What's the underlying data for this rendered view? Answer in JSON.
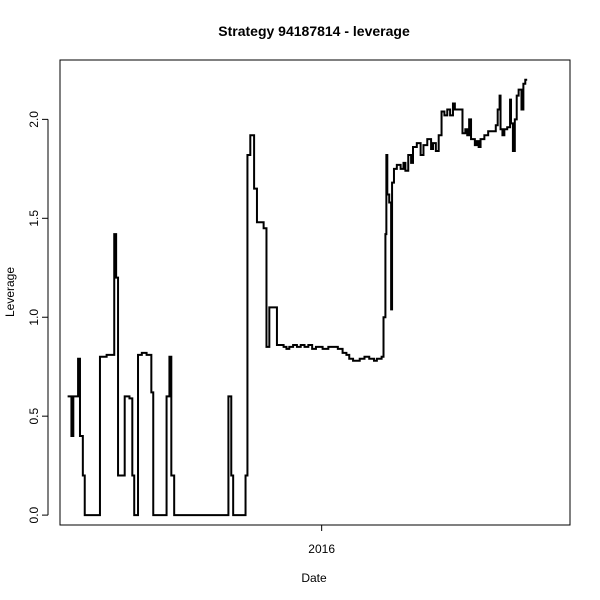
{
  "chart_data": {
    "type": "line",
    "title": "Strategy 94187814 - leverage",
    "xlabel": "Date",
    "ylabel": "Leverage",
    "x_ticks": [
      {
        "label": "2016",
        "value": "2016-01-01"
      }
    ],
    "y_ticks": [
      "0.0",
      "0.5",
      "1.0",
      "1.5",
      "2.0"
    ],
    "xlim": [
      "2015-04-01",
      "2016-09-18"
    ],
    "ylim": [
      -0.05,
      2.3
    ],
    "grid": false,
    "series": [
      {
        "color": "#000000",
        "points": [
          [
            "2015-04-09",
            0.6
          ],
          [
            "2015-04-13",
            0.6
          ],
          [
            "2015-04-13",
            0.4
          ],
          [
            "2015-04-15",
            0.4
          ],
          [
            "2015-04-15",
            0.6
          ],
          [
            "2015-04-20",
            0.6
          ],
          [
            "2015-04-20",
            0.79
          ],
          [
            "2015-04-22",
            0.79
          ],
          [
            "2015-04-22",
            0.4
          ],
          [
            "2015-04-25",
            0.4
          ],
          [
            "2015-04-25",
            0.2
          ],
          [
            "2015-04-27",
            0.2
          ],
          [
            "2015-04-27",
            0.0
          ],
          [
            "2015-05-13",
            0.0
          ],
          [
            "2015-05-13",
            0.8
          ],
          [
            "2015-05-20",
            0.8
          ],
          [
            "2015-05-20",
            0.81
          ],
          [
            "2015-05-28",
            0.81
          ],
          [
            "2015-05-28",
            1.42
          ],
          [
            "2015-05-30",
            1.42
          ],
          [
            "2015-05-30",
            1.2
          ],
          [
            "2015-06-01",
            1.2
          ],
          [
            "2015-06-01",
            0.2
          ],
          [
            "2015-06-08",
            0.2
          ],
          [
            "2015-06-08",
            0.6
          ],
          [
            "2015-06-13",
            0.6
          ],
          [
            "2015-06-13",
            0.59
          ],
          [
            "2015-06-16",
            0.59
          ],
          [
            "2015-06-16",
            0.2
          ],
          [
            "2015-06-18",
            0.2
          ],
          [
            "2015-06-18",
            0.0
          ],
          [
            "2015-06-22",
            0.0
          ],
          [
            "2015-06-22",
            0.81
          ],
          [
            "2015-06-26",
            0.81
          ],
          [
            "2015-06-26",
            0.82
          ],
          [
            "2015-07-01",
            0.82
          ],
          [
            "2015-07-01",
            0.81
          ],
          [
            "2015-07-06",
            0.81
          ],
          [
            "2015-07-06",
            0.62
          ],
          [
            "2015-07-08",
            0.62
          ],
          [
            "2015-07-08",
            0.0
          ],
          [
            "2015-07-22",
            0.0
          ],
          [
            "2015-07-22",
            0.6
          ],
          [
            "2015-07-25",
            0.6
          ],
          [
            "2015-07-25",
            0.8
          ],
          [
            "2015-07-27",
            0.8
          ],
          [
            "2015-07-27",
            0.2
          ],
          [
            "2015-07-30",
            0.2
          ],
          [
            "2015-07-30",
            0.0
          ],
          [
            "2015-09-25",
            0.0
          ],
          [
            "2015-09-25",
            0.6
          ],
          [
            "2015-09-28",
            0.6
          ],
          [
            "2015-09-28",
            0.2
          ],
          [
            "2015-09-30",
            0.2
          ],
          [
            "2015-09-30",
            0.0
          ],
          [
            "2015-10-13",
            0.0
          ],
          [
            "2015-10-13",
            0.2
          ],
          [
            "2015-10-15",
            0.2
          ],
          [
            "2015-10-15",
            1.82
          ],
          [
            "2015-10-18",
            1.82
          ],
          [
            "2015-10-18",
            1.92
          ],
          [
            "2015-10-22",
            1.92
          ],
          [
            "2015-10-22",
            1.65
          ],
          [
            "2015-10-25",
            1.65
          ],
          [
            "2015-10-25",
            1.48
          ],
          [
            "2015-11-01",
            1.48
          ],
          [
            "2015-11-01",
            1.45
          ],
          [
            "2015-11-04",
            1.45
          ],
          [
            "2015-11-04",
            0.85
          ],
          [
            "2015-11-07",
            0.85
          ],
          [
            "2015-11-07",
            1.05
          ],
          [
            "2015-11-15",
            1.05
          ],
          [
            "2015-11-15",
            0.86
          ],
          [
            "2015-11-22",
            0.86
          ],
          [
            "2015-11-22",
            0.85
          ],
          [
            "2015-11-25",
            0.85
          ],
          [
            "2015-11-25",
            0.84
          ],
          [
            "2015-11-28",
            0.84
          ],
          [
            "2015-11-28",
            0.85
          ],
          [
            "2015-12-02",
            0.85
          ],
          [
            "2015-12-02",
            0.86
          ],
          [
            "2015-12-06",
            0.86
          ],
          [
            "2015-12-06",
            0.85
          ],
          [
            "2015-12-10",
            0.85
          ],
          [
            "2015-12-10",
            0.86
          ],
          [
            "2015-12-14",
            0.86
          ],
          [
            "2015-12-14",
            0.85
          ],
          [
            "2015-12-18",
            0.85
          ],
          [
            "2015-12-18",
            0.86
          ],
          [
            "2015-12-22",
            0.86
          ],
          [
            "2015-12-22",
            0.84
          ],
          [
            "2015-12-26",
            0.84
          ],
          [
            "2015-12-26",
            0.85
          ],
          [
            "2016-01-02",
            0.85
          ],
          [
            "2016-01-02",
            0.84
          ],
          [
            "2016-01-08",
            0.84
          ],
          [
            "2016-01-08",
            0.85
          ],
          [
            "2016-01-18",
            0.85
          ],
          [
            "2016-01-18",
            0.84
          ],
          [
            "2016-01-23",
            0.84
          ],
          [
            "2016-01-23",
            0.82
          ],
          [
            "2016-01-27",
            0.82
          ],
          [
            "2016-01-27",
            0.81
          ],
          [
            "2016-01-30",
            0.81
          ],
          [
            "2016-01-30",
            0.79
          ],
          [
            "2016-02-03",
            0.79
          ],
          [
            "2016-02-03",
            0.78
          ],
          [
            "2016-02-10",
            0.78
          ],
          [
            "2016-02-10",
            0.79
          ],
          [
            "2016-02-15",
            0.79
          ],
          [
            "2016-02-15",
            0.8
          ],
          [
            "2016-02-20",
            0.8
          ],
          [
            "2016-02-20",
            0.79
          ],
          [
            "2016-02-25",
            0.79
          ],
          [
            "2016-02-25",
            0.78
          ],
          [
            "2016-02-28",
            0.78
          ],
          [
            "2016-02-28",
            0.79
          ],
          [
            "2016-03-04",
            0.79
          ],
          [
            "2016-03-04",
            0.8
          ],
          [
            "2016-03-06",
            0.8
          ],
          [
            "2016-03-06",
            1.0
          ],
          [
            "2016-03-08",
            1.0
          ],
          [
            "2016-03-08",
            1.42
          ],
          [
            "2016-03-09",
            1.42
          ],
          [
            "2016-03-09",
            1.82
          ],
          [
            "2016-03-10",
            1.82
          ],
          [
            "2016-03-10",
            1.62
          ],
          [
            "2016-03-12",
            1.62
          ],
          [
            "2016-03-12",
            1.58
          ],
          [
            "2016-03-14",
            1.58
          ],
          [
            "2016-03-14",
            1.04
          ],
          [
            "2016-03-15",
            1.04
          ],
          [
            "2016-03-15",
            1.68
          ],
          [
            "2016-03-17",
            1.68
          ],
          [
            "2016-03-17",
            1.75
          ],
          [
            "2016-03-20",
            1.75
          ],
          [
            "2016-03-20",
            1.77
          ],
          [
            "2016-03-24",
            1.77
          ],
          [
            "2016-03-24",
            1.75
          ],
          [
            "2016-03-27",
            1.75
          ],
          [
            "2016-03-27",
            1.78
          ],
          [
            "2016-03-29",
            1.78
          ],
          [
            "2016-03-29",
            1.74
          ],
          [
            "2016-04-01",
            1.74
          ],
          [
            "2016-04-01",
            1.82
          ],
          [
            "2016-04-04",
            1.82
          ],
          [
            "2016-04-04",
            1.78
          ],
          [
            "2016-04-06",
            1.78
          ],
          [
            "2016-04-06",
            1.86
          ],
          [
            "2016-04-10",
            1.86
          ],
          [
            "2016-04-10",
            1.88
          ],
          [
            "2016-04-14",
            1.88
          ],
          [
            "2016-04-14",
            1.82
          ],
          [
            "2016-04-17",
            1.82
          ],
          [
            "2016-04-17",
            1.87
          ],
          [
            "2016-04-21",
            1.87
          ],
          [
            "2016-04-21",
            1.9
          ],
          [
            "2016-04-25",
            1.9
          ],
          [
            "2016-04-25",
            1.85
          ],
          [
            "2016-04-27",
            1.85
          ],
          [
            "2016-04-27",
            1.88
          ],
          [
            "2016-04-30",
            1.88
          ],
          [
            "2016-04-30",
            1.84
          ],
          [
            "2016-05-03",
            1.84
          ],
          [
            "2016-05-03",
            1.92
          ],
          [
            "2016-05-06",
            1.92
          ],
          [
            "2016-05-06",
            2.04
          ],
          [
            "2016-05-09",
            2.04
          ],
          [
            "2016-05-09",
            2.02
          ],
          [
            "2016-05-12",
            2.02
          ],
          [
            "2016-05-12",
            2.05
          ],
          [
            "2016-05-15",
            2.05
          ],
          [
            "2016-05-15",
            2.02
          ],
          [
            "2016-05-18",
            2.02
          ],
          [
            "2016-05-18",
            2.08
          ],
          [
            "2016-05-20",
            2.08
          ],
          [
            "2016-05-20",
            2.05
          ],
          [
            "2016-05-28",
            2.05
          ],
          [
            "2016-05-28",
            1.93
          ],
          [
            "2016-05-31",
            1.93
          ],
          [
            "2016-05-31",
            1.95
          ],
          [
            "2016-06-02",
            1.95
          ],
          [
            "2016-06-02",
            1.92
          ],
          [
            "2016-06-04",
            1.92
          ],
          [
            "2016-06-04",
            2.0
          ],
          [
            "2016-06-06",
            2.0
          ],
          [
            "2016-06-06",
            1.9
          ],
          [
            "2016-06-10",
            1.9
          ],
          [
            "2016-06-10",
            1.87
          ],
          [
            "2016-06-12",
            1.87
          ],
          [
            "2016-06-12",
            1.89
          ],
          [
            "2016-06-14",
            1.89
          ],
          [
            "2016-06-14",
            1.86
          ],
          [
            "2016-06-16",
            1.86
          ],
          [
            "2016-06-16",
            1.9
          ],
          [
            "2016-06-20",
            1.9
          ],
          [
            "2016-06-20",
            1.92
          ],
          [
            "2016-06-24",
            1.92
          ],
          [
            "2016-06-24",
            1.94
          ],
          [
            "2016-07-02",
            1.94
          ],
          [
            "2016-07-02",
            1.97
          ],
          [
            "2016-07-04",
            1.97
          ],
          [
            "2016-07-04",
            2.05
          ],
          [
            "2016-07-06",
            2.05
          ],
          [
            "2016-07-06",
            2.12
          ],
          [
            "2016-07-07",
            2.12
          ],
          [
            "2016-07-07",
            1.95
          ],
          [
            "2016-07-09",
            1.95
          ],
          [
            "2016-07-09",
            1.92
          ],
          [
            "2016-07-11",
            1.92
          ],
          [
            "2016-07-11",
            1.95
          ],
          [
            "2016-07-14",
            1.95
          ],
          [
            "2016-07-14",
            1.96
          ],
          [
            "2016-07-17",
            1.96
          ],
          [
            "2016-07-17",
            2.1
          ],
          [
            "2016-07-18",
            2.1
          ],
          [
            "2016-07-18",
            1.98
          ],
          [
            "2016-07-20",
            1.98
          ],
          [
            "2016-07-20",
            1.84
          ],
          [
            "2016-07-22",
            1.84
          ],
          [
            "2016-07-22",
            2.0
          ],
          [
            "2016-07-24",
            2.0
          ],
          [
            "2016-07-24",
            2.12
          ],
          [
            "2016-07-26",
            2.12
          ],
          [
            "2016-07-26",
            2.15
          ],
          [
            "2016-07-29",
            2.15
          ],
          [
            "2016-07-29",
            2.05
          ],
          [
            "2016-07-31",
            2.05
          ],
          [
            "2016-07-31",
            2.18
          ],
          [
            "2016-08-02",
            2.18
          ],
          [
            "2016-08-02",
            2.2
          ],
          [
            "2016-08-04",
            2.2
          ]
        ]
      }
    ]
  }
}
